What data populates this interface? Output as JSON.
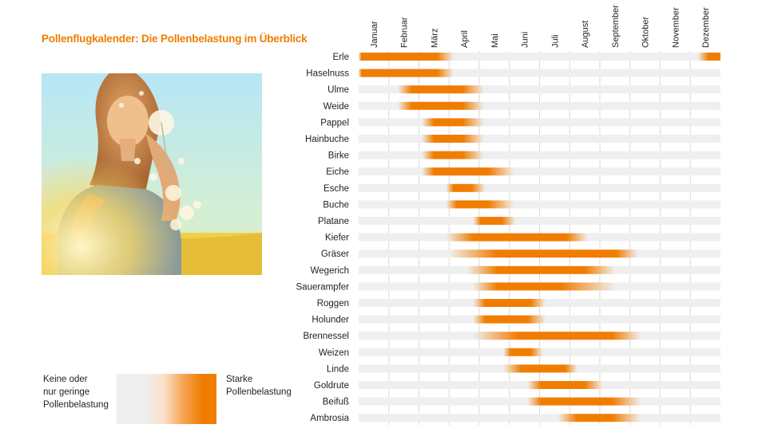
{
  "title": "Pollenflugkalender: Die Pollenbelastung im Überblick",
  "photo_alt": "",
  "legend": {
    "low_lines": [
      "Keine oder",
      "nur geringe",
      "Pollenbelastung"
    ],
    "high_lines": [
      "Starke",
      "Pollenbelastung"
    ]
  },
  "colors": {
    "accent": "#f07d00",
    "track": "#efefef",
    "grid": "#d9d9d9"
  },
  "chart_data": {
    "type": "gantt-heat",
    "title": "Pollenflugkalender: Die Pollenbelastung im Überblick",
    "months": [
      "Januar",
      "Februar",
      "März",
      "April",
      "Mai",
      "Juni",
      "Juli",
      "August",
      "September",
      "Oktober",
      "November",
      "Dezember"
    ],
    "x_unit": "month (0 = Anfang Januar, 12 = Ende Dezember)",
    "rows": [
      {
        "name": "Erle",
        "segments": [
          {
            "fade_in_start": 0.0,
            "peak_start": 0.1,
            "peak_end": 2.6,
            "fade_out_end": 3.15
          },
          {
            "fade_in_start": 11.25,
            "peak_start": 11.6,
            "peak_end": 12.0,
            "fade_out_end": 12.0
          }
        ]
      },
      {
        "name": "Haselnuss",
        "segments": [
          {
            "fade_in_start": 0.0,
            "peak_start": 0.1,
            "peak_end": 2.6,
            "fade_out_end": 3.15
          }
        ]
      },
      {
        "name": "Ulme",
        "segments": [
          {
            "fade_in_start": 1.3,
            "peak_start": 1.75,
            "peak_end": 3.45,
            "fade_out_end": 4.15
          }
        ]
      },
      {
        "name": "Weide",
        "segments": [
          {
            "fade_in_start": 1.3,
            "peak_start": 1.75,
            "peak_end": 3.45,
            "fade_out_end": 4.15
          }
        ]
      },
      {
        "name": "Pappel",
        "segments": [
          {
            "fade_in_start": 2.1,
            "peak_start": 2.5,
            "peak_end": 3.45,
            "fade_out_end": 4.15
          }
        ]
      },
      {
        "name": "Hainbuche",
        "segments": [
          {
            "fade_in_start": 2.1,
            "peak_start": 2.5,
            "peak_end": 3.45,
            "fade_out_end": 4.15
          }
        ]
      },
      {
        "name": "Birke",
        "segments": [
          {
            "fade_in_start": 2.1,
            "peak_start": 2.5,
            "peak_end": 3.45,
            "fade_out_end": 4.15
          }
        ]
      },
      {
        "name": "Eiche",
        "segments": [
          {
            "fade_in_start": 2.1,
            "peak_start": 2.5,
            "peak_end": 4.3,
            "fade_out_end": 5.15
          }
        ]
      },
      {
        "name": "Esche",
        "segments": [
          {
            "fade_in_start": 2.9,
            "peak_start": 3.15,
            "peak_end": 3.75,
            "fade_out_end": 4.2
          }
        ]
      },
      {
        "name": "Buche",
        "segments": [
          {
            "fade_in_start": 2.9,
            "peak_start": 3.25,
            "peak_end": 4.3,
            "fade_out_end": 5.15
          }
        ]
      },
      {
        "name": "Platane",
        "segments": [
          {
            "fade_in_start": 3.8,
            "peak_start": 4.05,
            "peak_end": 4.75,
            "fade_out_end": 5.2
          }
        ]
      },
      {
        "name": "Kiefer",
        "segments": [
          {
            "fade_in_start": 2.9,
            "peak_start": 3.8,
            "peak_end": 6.9,
            "fade_out_end": 7.6
          }
        ]
      },
      {
        "name": "Gräser",
        "segments": [
          {
            "fade_in_start": 3.0,
            "peak_start": 4.6,
            "peak_end": 8.55,
            "fade_out_end": 9.25
          }
        ]
      },
      {
        "name": "Wegerich",
        "segments": [
          {
            "fade_in_start": 3.6,
            "peak_start": 4.6,
            "peak_end": 7.5,
            "fade_out_end": 8.5
          }
        ]
      },
      {
        "name": "Sauerampfer",
        "segments": [
          {
            "fade_in_start": 3.8,
            "peak_start": 4.6,
            "peak_end": 6.7,
            "fade_out_end": 8.5
          }
        ]
      },
      {
        "name": "Roggen",
        "segments": [
          {
            "fade_in_start": 3.8,
            "peak_start": 4.2,
            "peak_end": 5.7,
            "fade_out_end": 6.2
          }
        ]
      },
      {
        "name": "Holunder",
        "segments": [
          {
            "fade_in_start": 3.8,
            "peak_start": 4.2,
            "peak_end": 5.6,
            "fade_out_end": 6.2
          }
        ]
      },
      {
        "name": "Brennessel",
        "segments": [
          {
            "fade_in_start": 3.8,
            "peak_start": 5.3,
            "peak_end": 8.4,
            "fade_out_end": 9.35
          }
        ]
      },
      {
        "name": "Weizen",
        "segments": [
          {
            "fade_in_start": 4.8,
            "peak_start": 5.05,
            "peak_end": 5.7,
            "fade_out_end": 6.1
          }
        ]
      },
      {
        "name": "Linde",
        "segments": [
          {
            "fade_in_start": 4.8,
            "peak_start": 5.4,
            "peak_end": 6.85,
            "fade_out_end": 7.25
          }
        ]
      },
      {
        "name": "Goldrute",
        "segments": [
          {
            "fade_in_start": 5.6,
            "peak_start": 6.05,
            "peak_end": 7.5,
            "fade_out_end": 8.1
          }
        ]
      },
      {
        "name": "Beifuß",
        "segments": [
          {
            "fade_in_start": 5.6,
            "peak_start": 6.05,
            "peak_end": 8.4,
            "fade_out_end": 9.35
          }
        ]
      },
      {
        "name": "Ambrosia",
        "segments": [
          {
            "fade_in_start": 6.6,
            "peak_start": 7.25,
            "peak_end": 8.4,
            "fade_out_end": 9.35
          }
        ]
      }
    ]
  }
}
